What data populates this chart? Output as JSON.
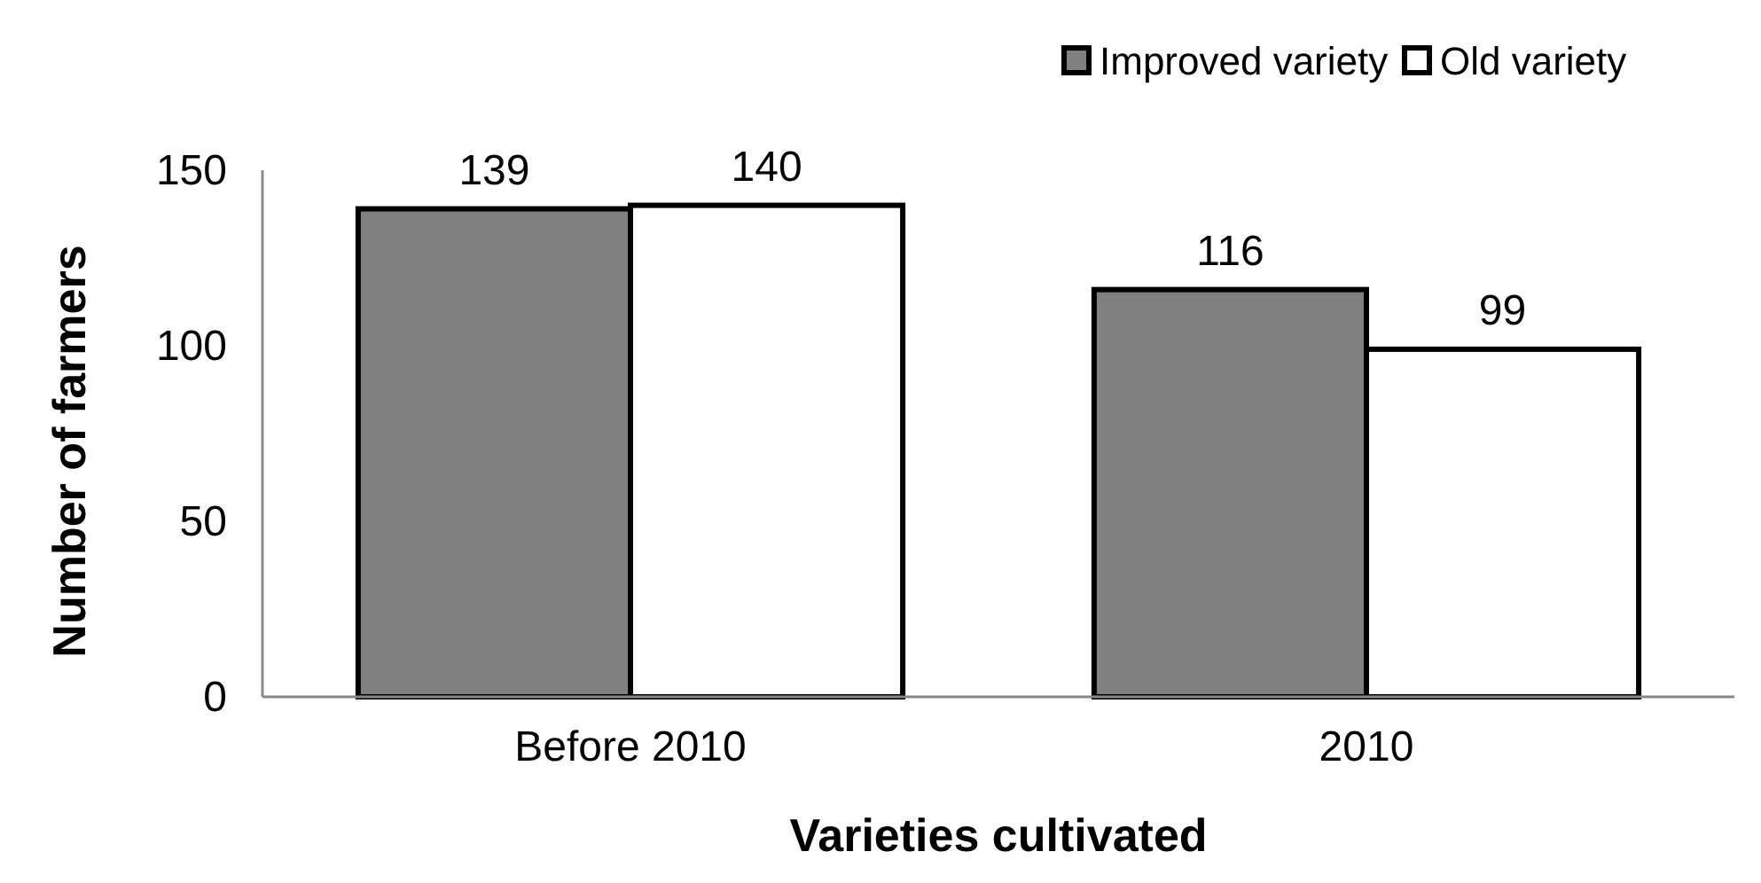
{
  "chart_data": {
    "type": "bar",
    "xlabel": "Varieties cultivated",
    "ylabel": "Number of farmers",
    "categories": [
      "Before 2010",
      "2010"
    ],
    "series": [
      {
        "name": "Improved variety",
        "color": "#808080",
        "values": [
          139,
          116
        ]
      },
      {
        "name": "Old variety",
        "color": "#ffffff",
        "values": [
          140,
          99
        ]
      }
    ],
    "ylim": [
      0,
      150
    ],
    "yticks": [
      0,
      50,
      100,
      150
    ],
    "grid": false,
    "legend": "top right",
    "data_labels": true
  }
}
